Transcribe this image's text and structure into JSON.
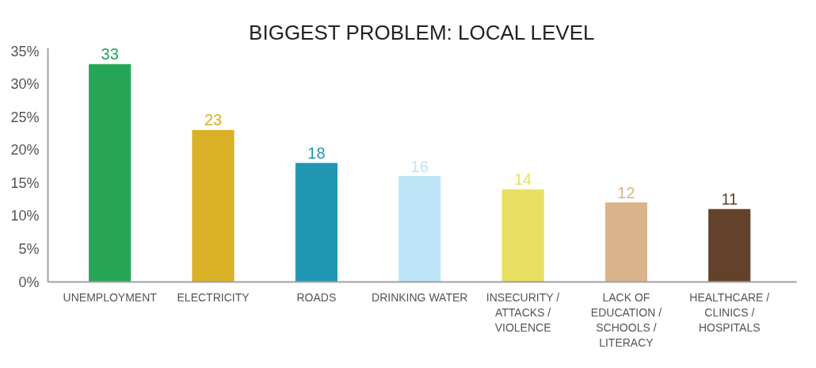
{
  "chart_data": {
    "type": "bar",
    "title": "BIGGEST PROBLEM: LOCAL LEVEL",
    "categories": [
      "UNEMPLOYMENT",
      "ELECTRICITY",
      "ROADS",
      "DRINKING WATER",
      "INSECURITY / ATTACKS / VIOLENCE",
      "LACK OF EDUCATION / SCHOOLS / LITERACY",
      "HEALTHCARE / CLINICS / HOSPITALS"
    ],
    "values": [
      33,
      23,
      18,
      16,
      14,
      12,
      11
    ],
    "colors": [
      "#27a556",
      "#dab027",
      "#2196b3",
      "#bde5f7",
      "#e8df63",
      "#d9b48b",
      "#63412a"
    ],
    "ylim": [
      0,
      35.5
    ],
    "yticks": [
      {
        "value": 0,
        "label": "0%"
      },
      {
        "value": 5,
        "label": "5%"
      },
      {
        "value": 10,
        "label": "10%"
      },
      {
        "value": 15,
        "label": "15%"
      },
      {
        "value": 20,
        "label": "20%"
      },
      {
        "value": 25,
        "label": "25%"
      },
      {
        "value": 30,
        "label": "30%"
      },
      {
        "value": 35,
        "label": "35%"
      }
    ],
    "data_labels": true,
    "grid": false
  }
}
